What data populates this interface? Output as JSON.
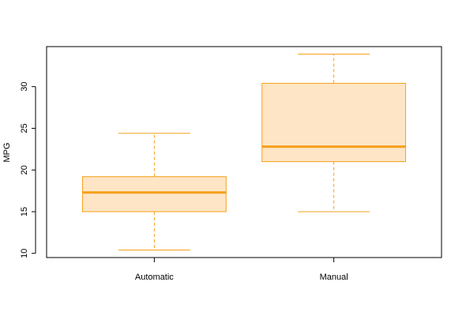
{
  "chart_data": {
    "type": "box",
    "title": "",
    "xlabel": "",
    "ylabel": "MPG",
    "ylim": [
      9.5,
      34.8
    ],
    "yticks": [
      10,
      15,
      20,
      25,
      30
    ],
    "grid": false,
    "categories": [
      "Automatic",
      "Manual"
    ],
    "boxes": [
      {
        "category": "Automatic",
        "whisker_low": 10.4,
        "q1": 15.0,
        "median": 17.3,
        "q3": 19.2,
        "whisker_high": 24.4
      },
      {
        "category": "Manual",
        "whisker_low": 15.0,
        "q1": 21.0,
        "median": 22.8,
        "q3": 30.4,
        "whisker_high": 33.9
      }
    ],
    "colors": {
      "box_fill": "#fde5c5",
      "box_stroke": "#f6a01c",
      "median": "#f6a01c",
      "whisker": "#f6a01c",
      "axis": "#000000"
    }
  }
}
